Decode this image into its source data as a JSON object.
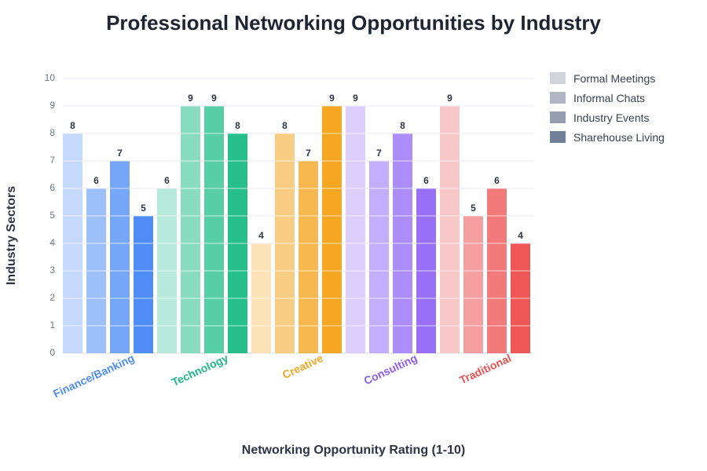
{
  "chart_data": {
    "type": "bar",
    "title": "Professional Networking Opportunities by Industry",
    "xlabel": "Networking Opportunity Rating (1-10)",
    "ylabel": "Industry Sectors",
    "ylim": [
      0,
      10
    ],
    "yticks": [
      0,
      1,
      2,
      3,
      4,
      5,
      6,
      7,
      8,
      9,
      10
    ],
    "grid": true,
    "legend_position": "right",
    "categories": [
      "Finance/Banking",
      "Technology",
      "Creative",
      "Consulting",
      "Traditional"
    ],
    "category_colors": [
      "#4f8df5",
      "#22b98a",
      "#f5a623",
      "#8b5cf6",
      "#ef4f4f"
    ],
    "series": [
      {
        "name": "Formal Meetings",
        "values": [
          8,
          6,
          4,
          9,
          9
        ]
      },
      {
        "name": "Informal Chats",
        "values": [
          6,
          9,
          8,
          7,
          5
        ]
      },
      {
        "name": "Industry Events",
        "values": [
          7,
          9,
          7,
          8,
          6
        ]
      },
      {
        "name": "Sharehouse Living",
        "values": [
          5,
          8,
          9,
          6,
          4
        ]
      }
    ],
    "legend_colors": [
      "#d1d5db",
      "#b0b7c3",
      "#959fb0",
      "#72819a"
    ],
    "bar_colors": [
      [
        "#c5d9fc",
        "#9ec0fa",
        "#76a6f8",
        "#4f8df5"
      ],
      [
        "#b7eadb",
        "#8adcc0",
        "#57cea5",
        "#26bf8b"
      ],
      [
        "#fde2b8",
        "#f9cd84",
        "#f7b851",
        "#f5a623"
      ],
      [
        "#dccffd",
        "#c3aefb",
        "#ad8ef8",
        "#9870f5"
      ],
      [
        "#f8c7c7",
        "#f5a0a0",
        "#f27a7a",
        "#ef5656"
      ]
    ]
  }
}
